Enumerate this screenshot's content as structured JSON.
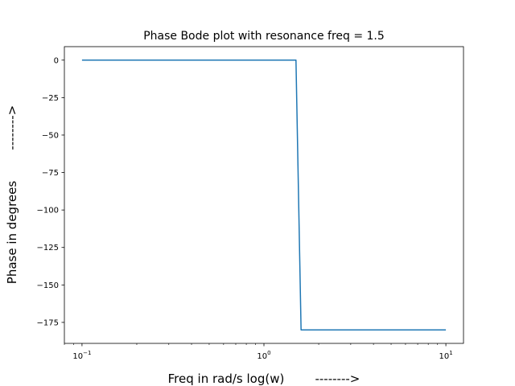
{
  "chart_data": {
    "type": "line",
    "title": "Phase Bode plot with resonance freq = 1.5",
    "xlabel": "Freq in rad/s log(w)        -------->",
    "ylabel": "Phase in degrees        -------->",
    "xscale": "log",
    "xlim": [
      0.08,
      12.5
    ],
    "ylim": [
      -189,
      9
    ],
    "grid": false,
    "x_ticks": [
      {
        "value": 0.1,
        "base": "10",
        "exp": "−1"
      },
      {
        "value": 1,
        "base": "10",
        "exp": "0"
      },
      {
        "value": 10,
        "base": "10",
        "exp": "1"
      }
    ],
    "y_ticks": [
      {
        "value": 0,
        "label": "0"
      },
      {
        "value": -25,
        "label": "−25"
      },
      {
        "value": -50,
        "label": "−50"
      },
      {
        "value": -75,
        "label": "−75"
      },
      {
        "value": -100,
        "label": "−100"
      },
      {
        "value": -125,
        "label": "−125"
      },
      {
        "value": -150,
        "label": "−150"
      },
      {
        "value": -175,
        "label": "−175"
      }
    ],
    "series": [
      {
        "color": "#1f77b4",
        "x": [
          0.1,
          1.0,
          1.5,
          1.6,
          2.0,
          5.0,
          10.0
        ],
        "y": [
          0,
          0,
          0,
          -180,
          -180,
          -180,
          -180
        ]
      }
    ]
  }
}
